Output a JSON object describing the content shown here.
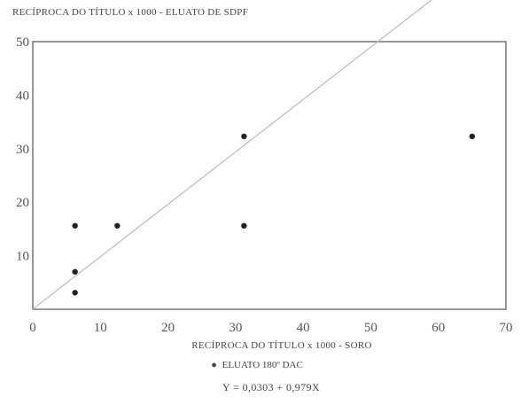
{
  "chart_data": {
    "type": "scatter",
    "title": "RECÍPROCA DO TÍTULO x 1000 - ELUATO DE SDPF",
    "xlabel": "RECÍPROCA DO TÍTULO x 1000 - SORO",
    "ylabel": "",
    "xlim": [
      0,
      70
    ],
    "ylim": [
      0,
      50
    ],
    "xticks": [
      "0",
      "10",
      "20",
      "30",
      "40",
      "50",
      "60",
      "70"
    ],
    "yticks": [
      "10",
      "20",
      "30",
      "40",
      "50"
    ],
    "grid": false,
    "legend": {
      "marker": "●",
      "label": "ELUATO 180º DAC",
      "placement": "bottom"
    },
    "equation": "Y = 0,0303 + 0,979X",
    "series": [
      {
        "name": "ELUATO 180º DAC",
        "points": [
          {
            "x": 6.25,
            "y": 15.6
          },
          {
            "x": 6.25,
            "y": 7.0
          },
          {
            "x": 6.25,
            "y": 3.1
          },
          {
            "x": 12.5,
            "y": 15.6
          },
          {
            "x": 31.25,
            "y": 32.3
          },
          {
            "x": 31.25,
            "y": 15.6
          },
          {
            "x": 65.0,
            "y": 32.3
          }
        ]
      }
    ],
    "regression": {
      "intercept": 0.0303,
      "slope": 0.979
    },
    "colors": {
      "axis": "#555555",
      "points": "#222222",
      "line": "#bbbbbb"
    }
  }
}
